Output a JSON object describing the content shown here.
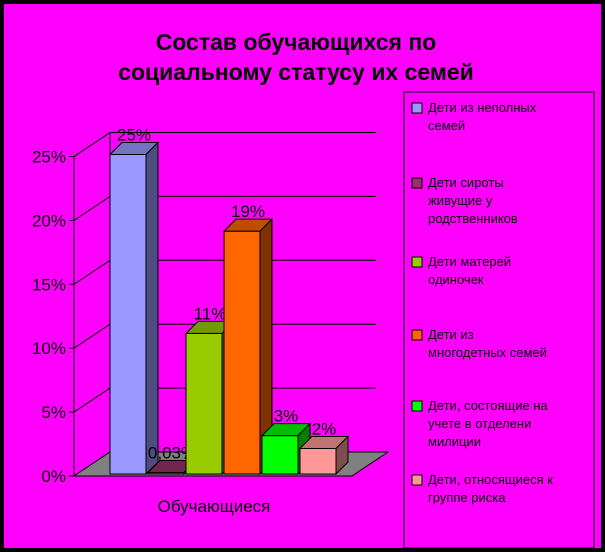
{
  "chart_data": {
    "type": "bar",
    "title_lines": [
      "Состав обучающихся по",
      "социальному статусу их семей"
    ],
    "categories": [
      "Обучающиеся"
    ],
    "ylim": [
      0,
      25
    ],
    "y_ticks": [
      "0%",
      "5%",
      "10%",
      "15%",
      "20%",
      "25%"
    ],
    "grid": true,
    "legend_position": "right",
    "series": [
      {
        "name": "Дети из неполных семей",
        "legend_lines": [
          "Дети из неполных",
          "семей"
        ],
        "value": 25,
        "label": "25%",
        "color": "#9999FF"
      },
      {
        "name": "Дети сироты живущие у родственников",
        "legend_lines": [
          "Дети сироты",
          "живущие у",
          "родственников"
        ],
        "value": 0.03,
        "label": "0,03%",
        "color": "#993366"
      },
      {
        "name": "Дети матерей одиночек",
        "legend_lines": [
          "Дети матерей",
          "одиночек"
        ],
        "value": 11,
        "label": "11%",
        "color": "#99CC00"
      },
      {
        "name": "Дети из многодетных семей",
        "legend_lines": [
          "Дети из",
          "многодетных семей"
        ],
        "value": 19,
        "label": "19%",
        "color": "#FF6600"
      },
      {
        "name": "Дети, состоящие на учете в отделении милиции",
        "legend_lines": [
          "Дети, состоящие на",
          "учете в отделени",
          "милиции"
        ],
        "value": 3,
        "label": "3%",
        "color": "#00FF00"
      },
      {
        "name": "Дети, относящиеся к группе риска",
        "legend_lines": [
          "Дети, относящиеся к",
          "группе риска"
        ],
        "value": 2,
        "label": "2%",
        "color": "#FF9999"
      }
    ]
  }
}
